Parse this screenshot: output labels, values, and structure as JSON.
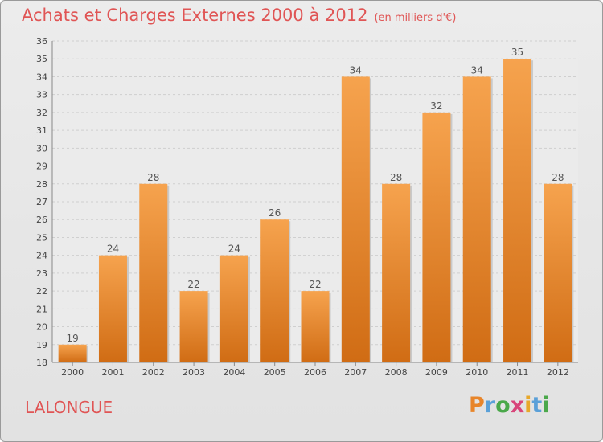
{
  "header": {
    "title": "Achats et Charges Externes 2000 à 2012",
    "unit": "(en milliers d'€)"
  },
  "place": "LALONGUE",
  "logo": {
    "letters": [
      "P",
      "r",
      "o",
      "x",
      "i",
      "t",
      "i"
    ],
    "colors": [
      "#e8852a",
      "#5aa0d8",
      "#4aa84a",
      "#d8457a",
      "#e8a82a",
      "#5aa0d8",
      "#4aa84a"
    ]
  },
  "colors": {
    "bar_top": "#f6a34e",
    "bar_bottom": "#d06c14",
    "title": "#e05555"
  },
  "chart_data": {
    "type": "bar",
    "title": "Achats et Charges Externes 2000 à 2012",
    "xlabel": "",
    "ylabel": "",
    "categories": [
      "2000",
      "2001",
      "2002",
      "2003",
      "2004",
      "2005",
      "2006",
      "2007",
      "2008",
      "2009",
      "2010",
      "2011",
      "2012"
    ],
    "values": [
      19,
      24,
      28,
      22,
      24,
      26,
      22,
      34,
      28,
      32,
      34,
      35,
      28
    ],
    "ylim": [
      18,
      36
    ],
    "yticks": [
      18,
      19,
      20,
      21,
      22,
      23,
      24,
      25,
      26,
      27,
      28,
      29,
      30,
      31,
      32,
      33,
      34,
      35,
      36
    ],
    "grid": true,
    "data_labels": true
  }
}
